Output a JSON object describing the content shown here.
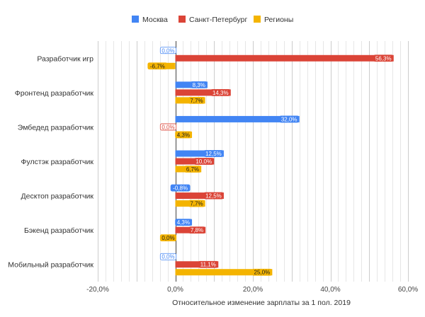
{
  "chart_data": {
    "type": "bar",
    "orientation": "horizontal",
    "title": "",
    "xlabel": "Относительное изменение зарплаты за 1 пол. 2019",
    "ylabel": "",
    "xlim": [
      -20,
      60
    ],
    "xticks": [
      -20,
      -10,
      0,
      10,
      20,
      30,
      40,
      50,
      60
    ],
    "xtick_labels": [
      "-20,0%",
      "",
      "0,0%",
      "",
      "20,0%",
      "",
      "40,0%",
      "",
      "60,0%"
    ],
    "minor_grid_step": 2,
    "grid": true,
    "legend_position": "top",
    "categories": [
      "Разработчик игр",
      "Фронтенд разработчик",
      "Эмбедед разработчик",
      "Фулстэк разработчик",
      "Десктоп разработчик",
      "Бэкенд разработчик",
      "Мобильный разработчик"
    ],
    "series": [
      {
        "name": "Москва",
        "color": "#4285f4",
        "values": [
          0.0,
          8.3,
          32.0,
          12.5,
          -0.8,
          4.3,
          0.0
        ],
        "labels": [
          "0,0%",
          "8,3%",
          "32,0%",
          "12,5%",
          "-0,8%",
          "4,3%",
          "0,0%"
        ]
      },
      {
        "name": "Санкт-Петербург",
        "color": "#db4437",
        "values": [
          56.3,
          14.3,
          0.0,
          10.0,
          12.5,
          7.8,
          11.1
        ],
        "labels": [
          "56,3%",
          "14,3%",
          "0,0%",
          "10,0%",
          "12,5%",
          "7,8%",
          "11,1%"
        ]
      },
      {
        "name": "Регионы",
        "color": "#f4b400",
        "values": [
          -6.7,
          7.7,
          4.3,
          6.7,
          7.7,
          0.0,
          25.0
        ],
        "labels": [
          "-6,7%",
          "7,7%",
          "4,3%",
          "6,7%",
          "7,7%",
          "0,0%",
          "25,0%"
        ]
      }
    ]
  }
}
